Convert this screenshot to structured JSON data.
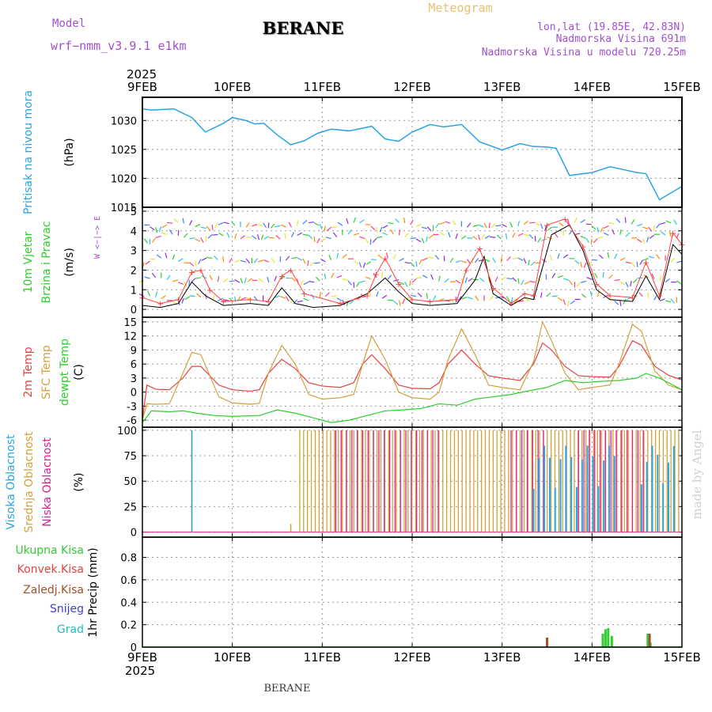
{
  "header": {
    "model_label": "Model",
    "model_name": "wrf−nmm_v3.9.1  e1km",
    "station": "BERANE",
    "meteogram_label": "Meteogram",
    "location": "lon,lat (19.85E, 42.83N)",
    "elevation": "Nadmorska Visina 691m",
    "model_elevation": "Nadmorska Visina u modelu 720.25m",
    "credit": "made by Angel",
    "footer_station": "BERANE",
    "year": "2025"
  },
  "colors": {
    "pressure": "#29a5e3",
    "wind_speed": "#000000",
    "wind_gust": "#ff4040",
    "temp_2m": "#e84040",
    "temp_sfc": "#d4a13c",
    "dewpoint": "#2ccf2c",
    "cloud_high": "#29a5e3",
    "cloud_mid": "#d4a13c",
    "cloud_low": "#e0208a",
    "precip_total": "#33cc33",
    "precip_conv": "#e84040",
    "precip_frozen": "#a0522d",
    "snow": "#4040d0",
    "hail": "#20c0c0",
    "purple": "#a050d0"
  },
  "chart_data": [
    {
      "type": "line",
      "name": "pressure",
      "title": "",
      "ylabel_lines": [
        "Pritisak na nivou mora",
        "(hPa)"
      ],
      "x_ticks": [
        "9FEB",
        "10FEB",
        "11FEB",
        "12FEB",
        "13FEB",
        "14FEB",
        "15FEB"
      ],
      "xlim": [
        0,
        6
      ],
      "ylim": [
        1015,
        1034
      ],
      "y_ticks": [
        1015,
        1020,
        1025,
        1030
      ],
      "grid": true,
      "series": [
        {
          "x": [
            0,
            0.1,
            0.35,
            0.55,
            0.7,
            0.9,
            1.0,
            1.15,
            1.25,
            1.35,
            1.5,
            1.65,
            1.8,
            1.95,
            2.1,
            2.3,
            2.55,
            2.7,
            2.85,
            3.0,
            3.2,
            3.35,
            3.55,
            3.75,
            4.0,
            4.2,
            4.35,
            4.5,
            4.6,
            4.75,
            5.0,
            5.2,
            5.35,
            5.5,
            5.6,
            5.75,
            6.0
          ],
          "y": [
            1032,
            1031.8,
            1032.0,
            1030.5,
            1028.0,
            1029.5,
            1030.5,
            1030.0,
            1029.4,
            1029.5,
            1027.5,
            1025.8,
            1026.5,
            1027.8,
            1028.5,
            1028.2,
            1029.0,
            1026.8,
            1026.4,
            1028.0,
            1029.3,
            1028.9,
            1029.3,
            1026.3,
            1024.9,
            1026.0,
            1025.5,
            1025.4,
            1025.2,
            1020.5,
            1021.0,
            1022.0,
            1021.5,
            1021.0,
            1020.8,
            1016.3,
            1018.6
          ]
        }
      ]
    },
    {
      "type": "line",
      "name": "wind",
      "ylabel_lines": [
        "10m Vjetar",
        "Brzina i Pravac",
        "(m/s)"
      ],
      "compass": "W <−|−> E",
      "xlim": [
        0,
        6
      ],
      "ylim": [
        -0.4,
        5.2
      ],
      "y_ticks": [
        0,
        1,
        2,
        3,
        4,
        5
      ],
      "grid": true,
      "series": [
        {
          "name": "speed",
          "x": [
            0,
            0.2,
            0.4,
            0.55,
            0.7,
            0.9,
            1.2,
            1.4,
            1.55,
            1.7,
            1.9,
            2.2,
            2.5,
            2.7,
            2.85,
            3.0,
            3.2,
            3.5,
            3.7,
            3.8,
            3.9,
            4.1,
            4.25,
            4.35,
            4.55,
            4.75,
            4.9,
            5.05,
            5.2,
            5.45,
            5.6,
            5.75,
            5.9,
            6.0
          ],
          "y": [
            0.2,
            0.1,
            0.3,
            1.4,
            0.7,
            0.2,
            0.3,
            0.2,
            1.1,
            0.3,
            0.1,
            0.2,
            0.8,
            1.6,
            0.9,
            0.3,
            0.2,
            0.3,
            1.5,
            2.7,
            0.8,
            0.2,
            0.6,
            0.5,
            3.8,
            4.3,
            3.0,
            1.0,
            0.5,
            0.4,
            1.7,
            0.5,
            3.3,
            2.8
          ]
        },
        {
          "name": "gust",
          "x": [
            0,
            0.2,
            0.4,
            0.55,
            0.65,
            0.75,
            0.9,
            1.2,
            1.4,
            1.55,
            1.65,
            1.8,
            2.2,
            2.5,
            2.6,
            2.7,
            2.85,
            3.0,
            3.2,
            3.5,
            3.6,
            3.75,
            3.9,
            4.1,
            4.25,
            4.35,
            4.5,
            4.7,
            4.9,
            5.05,
            5.2,
            5.45,
            5.6,
            5.75,
            5.9,
            6.0
          ],
          "y": [
            0.6,
            0.3,
            0.5,
            1.9,
            2.0,
            1.0,
            0.4,
            0.5,
            0.4,
            1.7,
            2.0,
            0.8,
            0.3,
            0.7,
            1.8,
            2.6,
            1.3,
            0.5,
            0.4,
            0.5,
            2.0,
            3.1,
            1.1,
            0.3,
            0.8,
            0.7,
            4.3,
            4.6,
            3.2,
            1.3,
            0.7,
            0.6,
            2.4,
            0.7,
            3.9,
            3.3
          ]
        }
      ]
    },
    {
      "type": "line",
      "name": "temperature",
      "ylabel_lines": [
        "2m Temp",
        "SFC Temp",
        "dewpt Temp",
        "(C)"
      ],
      "xlim": [
        0,
        6
      ],
      "ylim": [
        -7.5,
        16
      ],
      "y_ticks": [
        -6,
        -3,
        0,
        3,
        6,
        9,
        12,
        15
      ],
      "grid": true,
      "series": [
        {
          "name": "2m Temp",
          "x": [
            0,
            0.05,
            0.15,
            0.3,
            0.45,
            0.55,
            0.65,
            0.85,
            1.0,
            1.2,
            1.3,
            1.4,
            1.55,
            1.7,
            1.85,
            2.0,
            2.2,
            2.35,
            2.45,
            2.55,
            2.7,
            2.85,
            3.0,
            3.2,
            3.3,
            3.4,
            3.55,
            3.7,
            3.85,
            4.0,
            4.2,
            4.35,
            4.45,
            4.55,
            4.7,
            4.85,
            5.0,
            5.2,
            5.3,
            5.45,
            5.55,
            5.7,
            5.85,
            6.0
          ],
          "y": [
            -6,
            1.5,
            0.6,
            0.5,
            3,
            5.5,
            5.5,
            1.5,
            0.5,
            0.2,
            0.5,
            4,
            7,
            5,
            2,
            1.3,
            1.0,
            2,
            6,
            8,
            5,
            1.5,
            0.8,
            0.7,
            2,
            6,
            9,
            6,
            3.5,
            3.0,
            2.5,
            6,
            10.5,
            9,
            5.5,
            3.5,
            3.3,
            3.2,
            5.5,
            11,
            10,
            5.5,
            3.6,
            2.6
          ]
        },
        {
          "name": "SFC Temp",
          "x": [
            0,
            0.05,
            0.15,
            0.3,
            0.45,
            0.55,
            0.65,
            0.85,
            1.0,
            1.2,
            1.3,
            1.4,
            1.55,
            1.7,
            1.85,
            2.0,
            2.2,
            2.35,
            2.45,
            2.55,
            2.7,
            2.85,
            3.0,
            3.2,
            3.3,
            3.4,
            3.55,
            3.7,
            3.85,
            4.0,
            4.2,
            4.35,
            4.45,
            4.55,
            4.7,
            4.85,
            5.0,
            5.2,
            5.3,
            5.45,
            5.55,
            5.7,
            5.85,
            6.0
          ],
          "y": [
            -6,
            -2.5,
            -2.6,
            -2.5,
            4,
            8.5,
            8,
            -1,
            -2.3,
            -2.6,
            -2.4,
            4,
            10,
            6,
            -0.5,
            -1.5,
            -1.2,
            -0.5,
            6,
            12,
            7,
            0,
            -1.2,
            -1.5,
            0,
            7,
            13.5,
            8,
            1.5,
            1.0,
            0.5,
            6.5,
            15,
            11,
            4,
            0.5,
            1.0,
            1.5,
            6,
            14.5,
            13,
            4.5,
            1.5,
            0.5
          ]
        },
        {
          "name": "dewpt Temp",
          "x": [
            0,
            0.1,
            0.3,
            0.45,
            0.6,
            0.8,
            1.0,
            1.3,
            1.5,
            1.7,
            1.9,
            2.1,
            2.3,
            2.5,
            2.7,
            2.9,
            3.1,
            3.3,
            3.5,
            3.7,
            3.9,
            4.1,
            4.3,
            4.5,
            4.7,
            4.9,
            5.1,
            5.3,
            5.5,
            5.6,
            5.75,
            5.9,
            6.0
          ],
          "y": [
            -6.5,
            -4,
            -4.2,
            -4.0,
            -4.5,
            -5,
            -5.2,
            -5.0,
            -3.8,
            -4.5,
            -5.5,
            -6.5,
            -6,
            -5,
            -4,
            -3.8,
            -3.5,
            -2.5,
            -2.8,
            -1.5,
            -1.0,
            -0.5,
            0.3,
            1.0,
            2.5,
            2.0,
            2.3,
            2.5,
            3.0,
            4.0,
            3.0,
            1.5,
            0.5
          ]
        }
      ]
    },
    {
      "type": "bar",
      "name": "cloud",
      "ylabel_lines": [
        "Visoka Oblacnost",
        "Srednja Oblacnost",
        "Niska Oblacnost",
        "(%)"
      ],
      "xlim": [
        0,
        6
      ],
      "ylim": [
        -5,
        103
      ],
      "y_ticks": [
        0,
        25,
        50,
        75,
        100
      ],
      "grid": true,
      "series": [
        {
          "name": "Srednja Oblacnost",
          "ranges": [
            [
              1.75,
              6.0
            ]
          ],
          "value": 100,
          "spikes": [
            [
              0.55,
              100
            ],
            [
              1.65,
              8
            ]
          ]
        },
        {
          "name": "Niska Oblacnost",
          "ranges": [
            [
              2.15,
              3.3
            ],
            [
              4.1,
              4.5
            ],
            [
              4.85,
              5.6
            ]
          ],
          "value": 100
        },
        {
          "name": "Visoka Oblacnost",
          "ranges": [
            [
              4.35,
              5.3
            ],
            [
              5.55,
              5.95
            ]
          ],
          "value": 85,
          "spikes": [
            [
              0.55,
              100
            ]
          ]
        }
      ]
    },
    {
      "type": "bar",
      "name": "precip",
      "ylabel_lines": [
        "Ukupna Kisa",
        "Konvek.Kisa",
        "Zaledj.Kisa",
        "Snijeg",
        "Grad",
        "1hr Precip (mm)"
      ],
      "xlim": [
        0,
        6
      ],
      "ylim": [
        0,
        0.98
      ],
      "y_ticks": [
        0,
        0.2,
        0.4,
        0.6,
        0.8
      ],
      "grid": true,
      "x_ticks_bottom": [
        "9FEB",
        "10FEB",
        "11FEB",
        "12FEB",
        "13FEB",
        "14FEB",
        "15FEB"
      ],
      "series": [
        {
          "name": "Ukupna Kisa",
          "x": [
            5.12,
            5.15,
            5.18,
            5.22,
            5.62,
            5.65
          ],
          "y": [
            0.12,
            0.16,
            0.17,
            0.1,
            0.12,
            0.04
          ]
        },
        {
          "name": "Zaledj.Kisa",
          "x": [
            4.5,
            5.64
          ],
          "y": [
            0.085,
            0.12
          ]
        }
      ]
    }
  ]
}
